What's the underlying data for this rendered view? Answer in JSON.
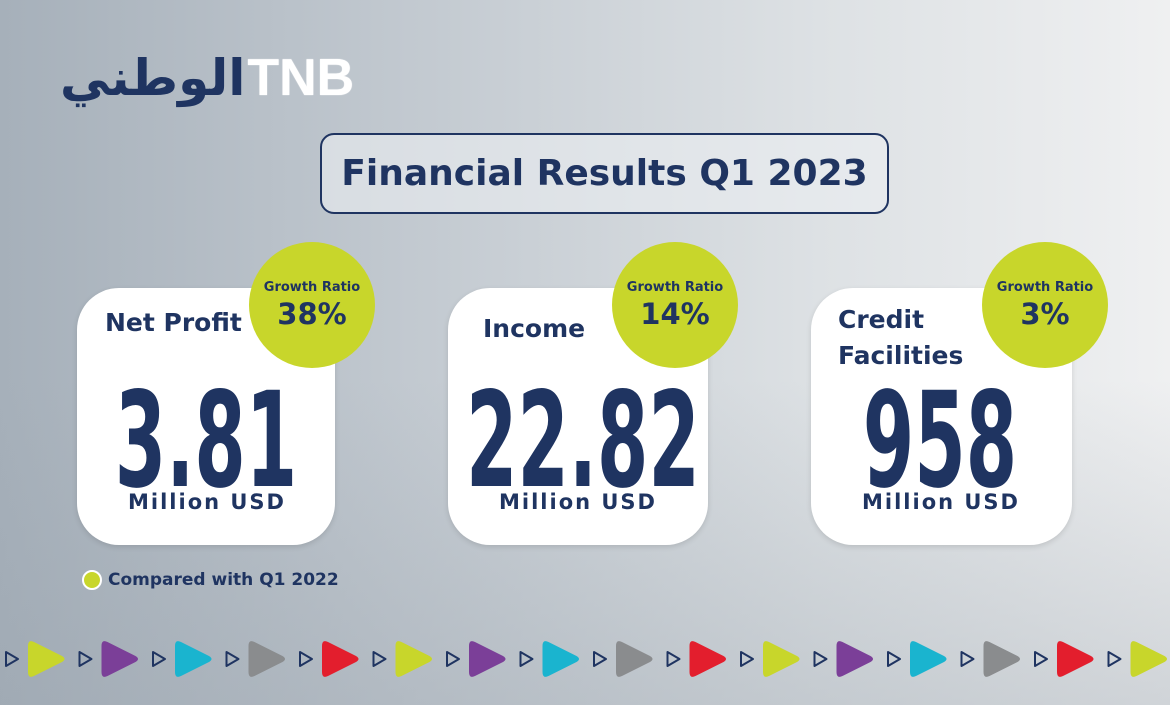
{
  "logo": {
    "arabic": "الوطني",
    "latin": "TNB"
  },
  "title": "Financial Results Q1 2023",
  "cards": [
    {
      "label": "Net Profit",
      "badge_label": "Growth Ratio",
      "growth": "38%",
      "value": "3.81",
      "unit": "Million USD"
    },
    {
      "label": "Income",
      "badge_label": "Growth Ratio",
      "growth": "14%",
      "value": "22.82",
      "unit": "Million USD"
    },
    {
      "label": "Credit Facilities",
      "badge_label": "Growth Ratio",
      "growth": "3%",
      "value": "958",
      "unit": "Million USD"
    }
  ],
  "footnote": "Compared with Q1 2022"
}
